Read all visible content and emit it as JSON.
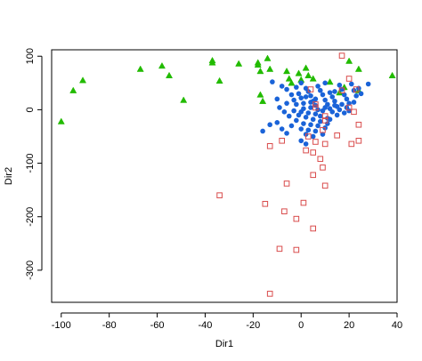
{
  "chart_data": {
    "type": "scatter",
    "xlabel": "Dir1",
    "ylabel": "Dir2",
    "xlim": [
      -104,
      40
    ],
    "ylim": [
      -360,
      112
    ],
    "x_ticks": [
      -100,
      -80,
      -60,
      -40,
      -20,
      0,
      20,
      40
    ],
    "y_ticks": [
      100,
      0,
      -100,
      -200,
      -300
    ],
    "x_tick_labels": [
      "-100",
      "-80",
      "-60",
      "-40",
      "-20",
      "0",
      "20",
      "40"
    ],
    "y_tick_labels": [
      "100",
      "0",
      "-100",
      "-200",
      "-300"
    ],
    "grid": false,
    "colors": {
      "green": "#22bb00",
      "blue": "#1a63d8",
      "red": "#d94c4c"
    },
    "series": [
      {
        "marker": "triangle",
        "color": "#22bb00",
        "points": [
          [
            -100,
            -22
          ],
          [
            -95,
            36
          ],
          [
            -91,
            55
          ],
          [
            -67,
            76
          ],
          [
            -58,
            82
          ],
          [
            -55,
            64
          ],
          [
            -49,
            18
          ],
          [
            -37,
            92
          ],
          [
            -37,
            88
          ],
          [
            -34,
            54
          ],
          [
            -26,
            86
          ],
          [
            -18,
            88
          ],
          [
            -18,
            84
          ],
          [
            -17,
            72
          ],
          [
            -17,
            28
          ],
          [
            -16,
            16
          ],
          [
            -14,
            96
          ],
          [
            -13,
            76
          ],
          [
            -6,
            72
          ],
          [
            -5,
            58
          ],
          [
            -4,
            50
          ],
          [
            -1,
            68
          ],
          [
            0,
            56
          ],
          [
            2,
            78
          ],
          [
            3,
            64
          ],
          [
            5,
            58
          ],
          [
            12,
            52
          ],
          [
            16,
            32
          ],
          [
            18,
            42
          ],
          [
            20,
            91
          ],
          [
            24,
            76
          ],
          [
            24,
            36
          ],
          [
            38,
            64
          ]
        ]
      },
      {
        "marker": "circle",
        "color": "#1a63d8",
        "points": [
          [
            -12,
            52
          ],
          [
            -8,
            44
          ],
          [
            -6,
            38
          ],
          [
            -4,
            28
          ],
          [
            -3,
            18
          ],
          [
            -2,
            10
          ],
          [
            -1,
            30
          ],
          [
            0,
            22
          ],
          [
            1,
            12
          ],
          [
            2,
            40
          ],
          [
            3,
            34
          ],
          [
            4,
            26
          ],
          [
            5,
            16
          ],
          [
            6,
            8
          ],
          [
            7,
            44
          ],
          [
            8,
            36
          ],
          [
            9,
            28
          ],
          [
            10,
            18
          ],
          [
            11,
            10
          ],
          [
            12,
            32
          ],
          [
            13,
            24
          ],
          [
            14,
            16
          ],
          [
            15,
            6
          ],
          [
            16,
            46
          ],
          [
            17,
            38
          ],
          [
            18,
            28
          ],
          [
            19,
            20
          ],
          [
            20,
            12
          ],
          [
            21,
            48
          ],
          [
            22,
            36
          ],
          [
            23,
            26
          ],
          [
            24,
            40
          ],
          [
            25,
            30
          ],
          [
            28,
            48
          ],
          [
            -10,
            20
          ],
          [
            -9,
            4
          ],
          [
            -7,
            -4
          ],
          [
            -6,
            12
          ],
          [
            -5,
            -12
          ],
          [
            -3,
            -2
          ],
          [
            -1,
            -10
          ],
          [
            0,
            -4
          ],
          [
            1,
            2
          ],
          [
            2,
            -14
          ],
          [
            3,
            -6
          ],
          [
            4,
            4
          ],
          [
            5,
            -18
          ],
          [
            6,
            -8
          ],
          [
            7,
            0
          ],
          [
            8,
            -12
          ],
          [
            9,
            -2
          ],
          [
            10,
            4
          ],
          [
            11,
            -16
          ],
          [
            12,
            2
          ],
          [
            13,
            -4
          ],
          [
            14,
            8
          ],
          [
            15,
            -10
          ],
          [
            16,
            0
          ],
          [
            17,
            10
          ],
          [
            18,
            -6
          ],
          [
            19,
            4
          ],
          [
            20,
            -2
          ],
          [
            22,
            14
          ],
          [
            -16,
            -40
          ],
          [
            -13,
            -28
          ],
          [
            -10,
            -24
          ],
          [
            -8,
            -36
          ],
          [
            -6,
            -44
          ],
          [
            -4,
            -30
          ],
          [
            -2,
            -20
          ],
          [
            0,
            -36
          ],
          [
            1,
            -26
          ],
          [
            2,
            -46
          ],
          [
            3,
            -38
          ],
          [
            4,
            -28
          ],
          [
            5,
            -50
          ],
          [
            6,
            -40
          ],
          [
            7,
            -30
          ],
          [
            8,
            -22
          ],
          [
            9,
            -46
          ],
          [
            10,
            -34
          ],
          [
            11,
            -26
          ],
          [
            12,
            -18
          ],
          [
            6,
            20
          ],
          [
            4,
            14
          ],
          [
            2,
            24
          ],
          [
            0,
            50
          ],
          [
            -2,
            42
          ],
          [
            10,
            50
          ],
          [
            14,
            34
          ],
          [
            0,
            -58
          ],
          [
            2,
            -64
          ]
        ]
      },
      {
        "marker": "square",
        "color": "#d94c4c",
        "points": [
          [
            17,
            101
          ],
          [
            20,
            58
          ],
          [
            17,
            36
          ],
          [
            23,
            38
          ],
          [
            4,
            38
          ],
          [
            6,
            4
          ],
          [
            6,
            10
          ],
          [
            10,
            -12
          ],
          [
            10,
            -20
          ],
          [
            9,
            -38
          ],
          [
            3,
            -50
          ],
          [
            -8,
            -58
          ],
          [
            -13,
            -68
          ],
          [
            6,
            -60
          ],
          [
            2,
            -76
          ],
          [
            10,
            -64
          ],
          [
            5,
            -80
          ],
          [
            15,
            -48
          ],
          [
            21,
            -64
          ],
          [
            24,
            -58
          ],
          [
            20,
            4
          ],
          [
            22,
            -4
          ],
          [
            24,
            -28
          ],
          [
            8,
            -92
          ],
          [
            9,
            -108
          ],
          [
            5,
            -122
          ],
          [
            10,
            -142
          ],
          [
            -6,
            -138
          ],
          [
            -34,
            -160
          ],
          [
            -15,
            -176
          ],
          [
            1,
            -174
          ],
          [
            -7,
            -190
          ],
          [
            -2,
            -204
          ],
          [
            5,
            -222
          ],
          [
            -9,
            -260
          ],
          [
            -2,
            -262
          ],
          [
            -13,
            -344
          ]
        ]
      }
    ]
  }
}
